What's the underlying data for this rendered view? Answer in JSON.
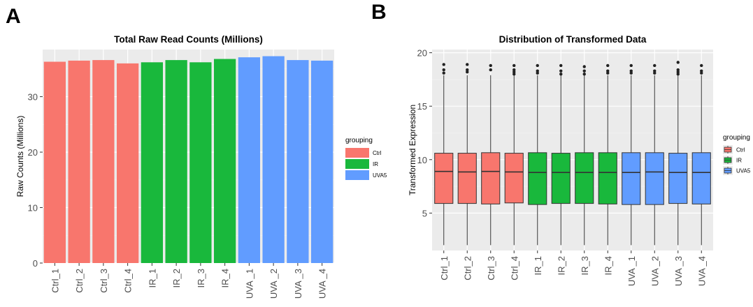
{
  "panels": {
    "a_label": "A",
    "b_label": "B"
  },
  "colors": {
    "Ctrl": "#f8766d",
    "IR": "#19b83c",
    "UVA5": "#619cff"
  },
  "chart_data": [
    {
      "type": "bar",
      "title": "Total Raw Read Counts (Millions)",
      "xlabel": "",
      "ylabel": "Raw Counts (Millions)",
      "ylim": [
        0,
        38.5
      ],
      "yticks": [
        0,
        10,
        20,
        30
      ],
      "categories": [
        "Ctrl_1",
        "Ctrl_2",
        "Ctrl_3",
        "Ctrl_4",
        "IR_1",
        "IR_2",
        "IR_3",
        "IR_4",
        "UVA _1",
        "UVA _2",
        "UVA _3",
        "UVA _4"
      ],
      "groups": [
        "Ctrl",
        "Ctrl",
        "Ctrl",
        "Ctrl",
        "IR",
        "IR",
        "IR",
        "IR",
        "UVA5",
        "UVA5",
        "UVA5",
        "UVA5"
      ],
      "values": [
        36.3,
        36.5,
        36.6,
        36.0,
        36.2,
        36.6,
        36.2,
        36.8,
        37.1,
        37.3,
        36.6,
        36.5
      ],
      "legend": {
        "title": "grouping",
        "entries": [
          "Ctrl",
          "IR",
          "UVA5"
        ],
        "placement": "right"
      },
      "grid": true
    },
    {
      "type": "box",
      "title": "Distribution of Transformed Data",
      "xlabel": "",
      "ylabel": "Transformed Expression",
      "ylim": [
        1.5,
        20.3
      ],
      "yticks": [
        5,
        10,
        15,
        20
      ],
      "categories": [
        "Ctrl_1",
        "Ctrl_2",
        "Ctrl_3",
        "Ctrl_4",
        "IR_1",
        "IR_2",
        "IR_3",
        "IR_4",
        "UVA _1",
        "UVA _2",
        "UVA _3",
        "UVA _4"
      ],
      "groups": [
        "Ctrl",
        "Ctrl",
        "Ctrl",
        "Ctrl",
        "IR",
        "IR",
        "IR",
        "IR",
        "UVA5",
        "UVA5",
        "UVA5",
        "UVA5"
      ],
      "boxes": [
        {
          "min": 2.0,
          "q1": 5.9,
          "median": 8.9,
          "q3": 10.6,
          "max": 17.9,
          "outliers": [
            18.1,
            18.4,
            18.9
          ]
        },
        {
          "min": 2.0,
          "q1": 5.9,
          "median": 8.85,
          "q3": 10.6,
          "max": 17.9,
          "outliers": [
            18.2,
            18.4,
            18.9
          ]
        },
        {
          "min": 2.0,
          "q1": 5.85,
          "median": 8.9,
          "q3": 10.65,
          "max": 17.9,
          "outliers": [
            18.4,
            18.8
          ]
        },
        {
          "min": 2.0,
          "q1": 5.95,
          "median": 8.85,
          "q3": 10.6,
          "max": 17.9,
          "outliers": [
            18.0,
            18.2,
            18.4,
            18.8
          ]
        },
        {
          "min": 2.0,
          "q1": 5.8,
          "median": 8.8,
          "q3": 10.65,
          "max": 17.9,
          "outliers": [
            18.1,
            18.3,
            18.8
          ]
        },
        {
          "min": 2.0,
          "q1": 5.9,
          "median": 8.8,
          "q3": 10.6,
          "max": 17.9,
          "outliers": [
            18.0,
            18.3,
            18.8
          ]
        },
        {
          "min": 2.0,
          "q1": 5.9,
          "median": 8.8,
          "q3": 10.65,
          "max": 17.9,
          "outliers": [
            18.0,
            18.3,
            18.7
          ]
        },
        {
          "min": 2.0,
          "q1": 5.85,
          "median": 8.8,
          "q3": 10.65,
          "max": 17.9,
          "outliers": [
            18.1,
            18.3,
            18.8
          ]
        },
        {
          "min": 2.0,
          "q1": 5.8,
          "median": 8.8,
          "q3": 10.65,
          "max": 17.9,
          "outliers": [
            18.1,
            18.3,
            18.8
          ]
        },
        {
          "min": 2.0,
          "q1": 5.8,
          "median": 8.85,
          "q3": 10.65,
          "max": 17.9,
          "outliers": [
            18.1,
            18.3,
            18.8
          ]
        },
        {
          "min": 2.0,
          "q1": 5.9,
          "median": 8.8,
          "q3": 10.6,
          "max": 17.9,
          "outliers": [
            18.0,
            18.2,
            18.4,
            19.1
          ]
        },
        {
          "min": 2.0,
          "q1": 5.85,
          "median": 8.8,
          "q3": 10.65,
          "max": 17.9,
          "outliers": [
            18.1,
            18.3,
            18.8
          ]
        }
      ],
      "legend": {
        "title": "grouping",
        "entries": [
          "Ctrl",
          "IR",
          "UVA5"
        ],
        "placement": "right"
      },
      "grid": true
    }
  ]
}
